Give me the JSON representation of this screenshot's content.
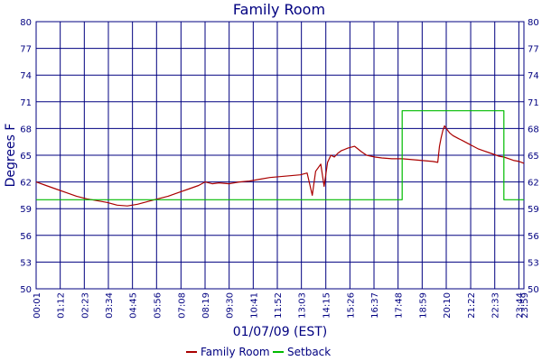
{
  "chart_data": {
    "type": "line",
    "title": "Family Room",
    "xlabel": "01/07/09 (EST)",
    "ylabel": "Degrees F",
    "ylim": [
      50,
      80
    ],
    "yticks": [
      50,
      53,
      56,
      59,
      62,
      65,
      68,
      71,
      74,
      77,
      80
    ],
    "xlim": [
      "00:01",
      "23:59"
    ],
    "xtick_labels": [
      "00:01",
      "01:12",
      "02:23",
      "03:34",
      "04:45",
      "05:56",
      "07:08",
      "08:19",
      "09:30",
      "10:41",
      "11:52",
      "13:03",
      "14:15",
      "15:26",
      "16:37",
      "17:48",
      "18:59",
      "20:10",
      "21:22",
      "22:33",
      "23:44",
      "23:59"
    ],
    "grid": true,
    "legend_position": "bottom-center",
    "series": [
      {
        "name": "Family Room",
        "color": "#aa0000",
        "x": [
          "00:01",
          "00:30",
          "01:00",
          "01:30",
          "02:00",
          "02:30",
          "03:00",
          "03:30",
          "04:00",
          "04:30",
          "05:00",
          "05:30",
          "06:00",
          "06:30",
          "07:00",
          "07:30",
          "08:00",
          "08:19",
          "08:40",
          "09:00",
          "09:30",
          "10:00",
          "10:30",
          "11:00",
          "11:30",
          "12:00",
          "12:30",
          "13:00",
          "13:20",
          "13:35",
          "13:45",
          "14:00",
          "14:10",
          "14:20",
          "14:30",
          "14:40",
          "14:50",
          "15:00",
          "15:20",
          "15:40",
          "16:00",
          "16:15",
          "16:40",
          "17:00",
          "17:30",
          "18:00",
          "18:30",
          "19:00",
          "19:30",
          "19:45",
          "19:50",
          "19:55",
          "20:00",
          "20:05",
          "20:10",
          "20:20",
          "20:30",
          "20:45",
          "21:00",
          "21:15",
          "21:30",
          "21:45",
          "22:00",
          "22:15",
          "22:30",
          "22:45",
          "23:00",
          "23:15",
          "23:30",
          "23:45",
          "23:59"
        ],
        "y": [
          62.0,
          61.6,
          61.2,
          60.8,
          60.4,
          60.1,
          59.9,
          59.7,
          59.4,
          59.3,
          59.5,
          59.8,
          60.1,
          60.4,
          60.8,
          61.2,
          61.6,
          62.0,
          61.8,
          61.9,
          61.8,
          62.0,
          62.1,
          62.3,
          62.5,
          62.6,
          62.7,
          62.8,
          63.0,
          60.5,
          63.2,
          64.0,
          61.5,
          64.2,
          65.0,
          64.8,
          65.2,
          65.5,
          65.8,
          66.0,
          65.4,
          65.0,
          64.8,
          64.7,
          64.6,
          64.6,
          64.5,
          64.4,
          64.3,
          64.2,
          66.0,
          67.0,
          67.8,
          68.3,
          68.0,
          67.5,
          67.2,
          66.9,
          66.6,
          66.3,
          66.0,
          65.7,
          65.5,
          65.3,
          65.1,
          64.9,
          64.8,
          64.6,
          64.4,
          64.3,
          64.1
        ]
      },
      {
        "name": "Setback",
        "color": "#00bb00",
        "x": [
          "00:01",
          "18:00",
          "18:00",
          "23:00",
          "23:00",
          "23:59"
        ],
        "y": [
          60,
          60,
          70,
          70,
          60,
          60
        ]
      }
    ]
  }
}
